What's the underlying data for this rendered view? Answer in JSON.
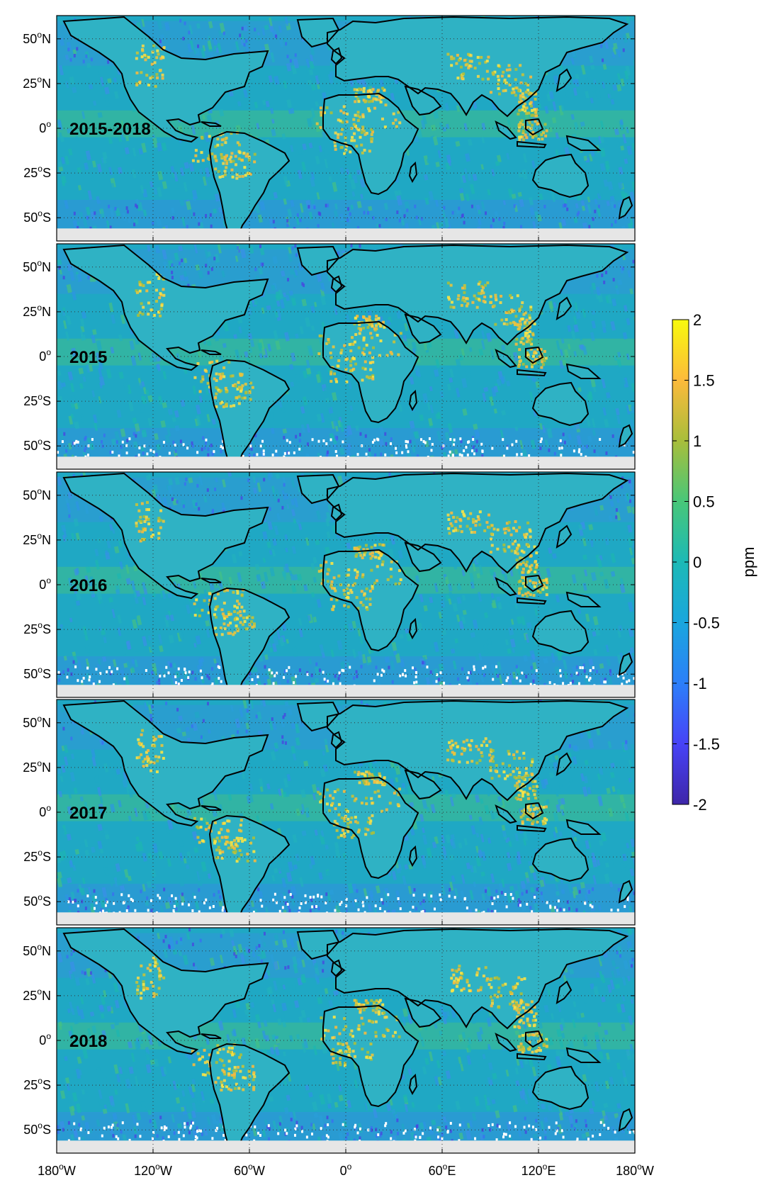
{
  "figure": {
    "panels": [
      {
        "label": "2015-2018"
      },
      {
        "label": "2015"
      },
      {
        "label": "2016"
      },
      {
        "label": "2017"
      },
      {
        "label": "2018"
      }
    ],
    "lat_ticks": [
      {
        "value": 50,
        "num": "50",
        "hemi": "N"
      },
      {
        "value": 25,
        "num": "25",
        "hemi": "N"
      },
      {
        "value": 0,
        "num": "0",
        "hemi": ""
      },
      {
        "value": -25,
        "num": "25",
        "hemi": "S"
      },
      {
        "value": -50,
        "num": "50",
        "hemi": "S"
      }
    ],
    "lon_ticks": [
      {
        "value": -180,
        "num": "180",
        "hemi": "W"
      },
      {
        "value": -120,
        "num": "120",
        "hemi": "W"
      },
      {
        "value": -60,
        "num": "60",
        "hemi": "W"
      },
      {
        "value": 0,
        "num": "0",
        "hemi": ""
      },
      {
        "value": 60,
        "num": "60",
        "hemi": "E"
      },
      {
        "value": 120,
        "num": "120",
        "hemi": "E"
      },
      {
        "value": 180,
        "num": "180",
        "hemi": "W"
      }
    ],
    "colorbar": {
      "label": "ppm",
      "min": -2,
      "max": 2,
      "ticks": [
        "2",
        "1.5",
        "1",
        "0.5",
        "0",
        "-0.5",
        "-1",
        "-1.5",
        "-2"
      ],
      "colors": [
        "#3e26a8",
        "#4743f7",
        "#2c7ff9",
        "#1aa6de",
        "#1cb9b6",
        "#48c779",
        "#a8be3b",
        "#fcba3b",
        "#f8fa0d"
      ]
    },
    "colors": {
      "ocean_base": "#1fa8c4",
      "land_high": "#f5d548",
      "no_data": "#e6e6e6",
      "coastline": "#000000"
    }
  }
}
